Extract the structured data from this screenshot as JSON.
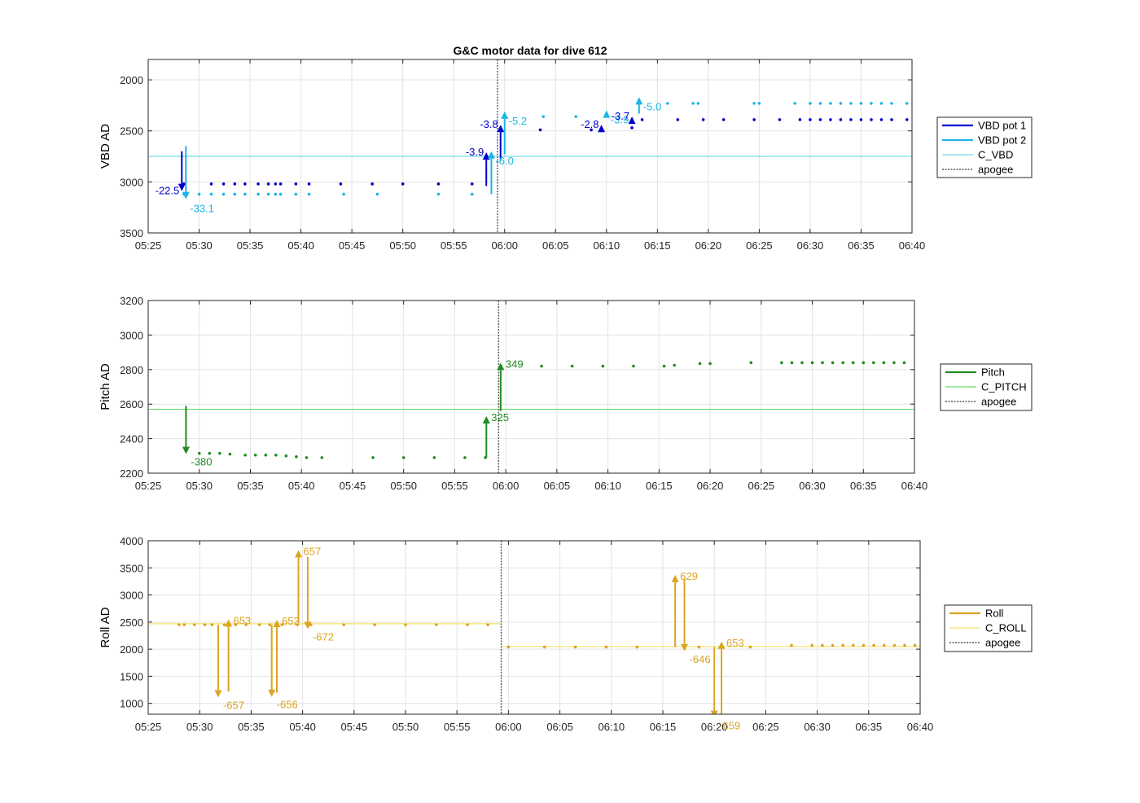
{
  "figure": {
    "title": "G&C motor data for dive 612"
  },
  "x_ticks": [
    "05:25",
    "05:30",
    "05:35",
    "05:40",
    "05:45",
    "05:50",
    "05:55",
    "06:00",
    "06:05",
    "06:10",
    "06:15",
    "06:20",
    "06:25",
    "06:30",
    "06:35",
    "06:40"
  ],
  "chart_data": [
    {
      "type": "scatter",
      "ylabel": "VBD AD",
      "ylim": [
        3500,
        1800
      ],
      "y_reversed": true,
      "y_ticks": [
        2000,
        2500,
        3000,
        3500
      ],
      "xlim": [
        "05:25",
        "06:40"
      ],
      "grid": true,
      "legend_position": "right",
      "legend": [
        "VBD pot 1",
        "VBD pot 2",
        "C_VBD",
        "apogee"
      ],
      "colors": {
        "pot1": "#0000cc",
        "pot2": "#1ab5e6",
        "ref": "#6fdde8",
        "apogee": "#555555"
      },
      "c_value": 2750,
      "apogee_time": 34.3,
      "series": [
        {
          "name": "VBD pot 1",
          "color": "#0000cc",
          "x": [
            3.5,
            6.2,
            7.4,
            8.5,
            9.5,
            10.8,
            11.8,
            12.5,
            13.0,
            14.5,
            15.8,
            18.9,
            22.0,
            25.0,
            28.5,
            31.8,
            38.5,
            43.5,
            47.5,
            48.5,
            52.0,
            54.5,
            56.5,
            59.5,
            62.0,
            64.0,
            65.0,
            66.0,
            67.0,
            68.0,
            69.0,
            70.0,
            71.0,
            72.0,
            73.0,
            74.5
          ],
          "y": [
            3020,
            3020,
            3020,
            3020,
            3020,
            3020,
            3020,
            3020,
            3020,
            3020,
            3020,
            3020,
            3020,
            3020,
            3020,
            3020,
            2490,
            2490,
            2470,
            2390,
            2390,
            2390,
            2390,
            2390,
            2390,
            2390,
            2390,
            2390,
            2390,
            2390,
            2390,
            2390,
            2390,
            2390,
            2390,
            2390
          ]
        },
        {
          "name": "VBD pot 2",
          "color": "#1ab5e6",
          "x": [
            3.5,
            5.0,
            6.2,
            7.4,
            8.5,
            9.5,
            10.8,
            11.8,
            12.5,
            13.0,
            14.5,
            15.8,
            19.2,
            22.5,
            28.5,
            31.8,
            38.8,
            42.0,
            51.0,
            53.5,
            54.0,
            59.5,
            60.0,
            63.5,
            65.0,
            66.0,
            67.0,
            68.0,
            69.0,
            70.0,
            71.0,
            72.0,
            73.0,
            74.5
          ],
          "y": [
            3120,
            3120,
            3120,
            3120,
            3120,
            3120,
            3120,
            3120,
            3120,
            3120,
            3120,
            3120,
            3120,
            3120,
            3120,
            3120,
            2360,
            2360,
            2230,
            2230,
            2230,
            2230,
            2230,
            2230,
            2230,
            2230,
            2230,
            2230,
            2230,
            2230,
            2230,
            2230,
            2230,
            2230
          ]
        }
      ],
      "arrows": [
        {
          "series": "VBD pot 1",
          "x": 3.3,
          "y0": 2700,
          "y1": 3090,
          "label": "-22.5",
          "color": "#0000cc"
        },
        {
          "series": "VBD pot 2",
          "x": 3.7,
          "y0": 2650,
          "y1": 3170,
          "label": "-33.1",
          "color": "#1ab5e6"
        },
        {
          "series": "VBD pot 1",
          "x": 33.2,
          "y0": 3040,
          "y1": 2710,
          "label": "-3.9",
          "color": "#0000cc"
        },
        {
          "series": "VBD pot 2",
          "x": 33.7,
          "y0": 3120,
          "y1": 2700,
          "label": "-6.0",
          "color": "#1ab5e6"
        },
        {
          "series": "VBD pot 1",
          "x": 34.6,
          "y0": 2780,
          "y1": 2440,
          "label": "-3.8",
          "color": "#0000cc"
        },
        {
          "series": "VBD pot 2",
          "x": 35.0,
          "y0": 2730,
          "y1": 2310,
          "label": "-5.2",
          "color": "#1ab5e6"
        },
        {
          "series": "VBD pot 1",
          "x": 44.5,
          "y0": 2490,
          "y1": 2440,
          "label": "-2.8",
          "color": "#0000cc"
        },
        {
          "series": "VBD pot 2",
          "x": 45.0,
          "y0": 2360,
          "y1": 2300,
          "label": "-3.9",
          "color": "#1ab5e6"
        },
        {
          "series": "VBD pot 1",
          "x": 47.5,
          "y0": 2420,
          "y1": 2360,
          "label": "-3.7",
          "color": "#0000cc"
        },
        {
          "series": "VBD pot 2",
          "x": 48.2,
          "y0": 2330,
          "y1": 2170,
          "label": "-5.0",
          "color": "#1ab5e6"
        }
      ]
    },
    {
      "type": "scatter",
      "ylabel": "Pitch AD",
      "ylim": [
        2200,
        3200
      ],
      "y_ticks": [
        2200,
        2400,
        2600,
        2800,
        3000,
        3200
      ],
      "xlim": [
        "05:25",
        "06:40"
      ],
      "grid": true,
      "legend_position": "right",
      "legend": [
        "Pitch",
        "C_PITCH",
        "apogee"
      ],
      "colors": {
        "pitch": "#228b22",
        "ref": "#66dd66",
        "apogee": "#555555"
      },
      "c_value": 2570,
      "apogee_time": 34.3,
      "series": [
        {
          "name": "Pitch",
          "color": "#228b22",
          "x": [
            5.0,
            6.0,
            7.0,
            8.0,
            9.5,
            10.5,
            11.5,
            12.5,
            13.5,
            14.5,
            15.5,
            17.0,
            22.0,
            25.0,
            28.0,
            31.0,
            33.0,
            38.5,
            41.5,
            44.5,
            47.5,
            50.5,
            51.5,
            54.0,
            55.0,
            59.0,
            62.0,
            63.0,
            64.0,
            65.0,
            66.0,
            67.0,
            68.0,
            69.0,
            70.0,
            71.0,
            72.0,
            73.0,
            74.0
          ],
          "y": [
            2315,
            2315,
            2315,
            2310,
            2305,
            2305,
            2305,
            2305,
            2300,
            2295,
            2290,
            2290,
            2290,
            2290,
            2290,
            2290,
            2290,
            2820,
            2820,
            2820,
            2820,
            2820,
            2825,
            2835,
            2835,
            2840,
            2840,
            2840,
            2840,
            2840,
            2840,
            2840,
            2840,
            2840,
            2840,
            2840,
            2840,
            2840,
            2840
          ]
        }
      ],
      "arrows": [
        {
          "x": 3.7,
          "y0": 2590,
          "y1": 2310,
          "label": "-380",
          "color": "#228b22"
        },
        {
          "x": 33.1,
          "y0": 2290,
          "y1": 2530,
          "label": "325",
          "color": "#228b22"
        },
        {
          "x": 34.5,
          "y0": 2560,
          "y1": 2840,
          "label": "349",
          "color": "#228b22"
        }
      ]
    },
    {
      "type": "scatter",
      "ylabel": "Roll AD",
      "ylim": [
        800,
        4000
      ],
      "y_ticks": [
        1000,
        1500,
        2000,
        2500,
        3000,
        3500,
        4000
      ],
      "xlim": [
        "05:25",
        "06:40"
      ],
      "grid": true,
      "legend_position": "right",
      "legend": [
        "Roll",
        "C_ROLL",
        "apogee"
      ],
      "colors": {
        "roll": "#daa520",
        "ref": "#f5e06a",
        "apogee": "#555555"
      },
      "c_segments": [
        {
          "x0": 0,
          "x1": 34.3,
          "y": 2470
        },
        {
          "x0": 34.3,
          "x1": 75,
          "y": 2050
        }
      ],
      "apogee_time": 34.3,
      "series": [
        {
          "name": "Roll",
          "color": "#daa520",
          "x": [
            3.0,
            3.5,
            4.5,
            5.5,
            6.2,
            7.4,
            8.5,
            9.5,
            10.8,
            11.8,
            12.5,
            13.0,
            14.5,
            15.8,
            19.0,
            22.0,
            25.0,
            28.0,
            31.0,
            33.0,
            35.0,
            38.5,
            41.5,
            44.5,
            47.5,
            53.5,
            58.5,
            62.5,
            64.5,
            65.5,
            66.5,
            67.5,
            68.5,
            69.5,
            70.5,
            71.5,
            72.5,
            73.5,
            74.5
          ],
          "y": [
            2450,
            2450,
            2450,
            2450,
            2450,
            2450,
            2450,
            2450,
            2450,
            2450,
            2450,
            2450,
            2450,
            2450,
            2450,
            2450,
            2450,
            2450,
            2450,
            2450,
            2040,
            2040,
            2040,
            2040,
            2040,
            2040,
            2040,
            2070,
            2070,
            2070,
            2070,
            2070,
            2070,
            2070,
            2070,
            2070,
            2070,
            2070,
            2070
          ]
        }
      ],
      "arrows": [
        {
          "x": 6.8,
          "y0": 2450,
          "y1": 1110,
          "label": "-657",
          "color": "#daa520"
        },
        {
          "x": 7.8,
          "y0": 1220,
          "y1": 2550,
          "label": "653",
          "color": "#daa520"
        },
        {
          "x": 12.0,
          "y0": 2450,
          "y1": 1120,
          "label": "-656",
          "color": "#daa520"
        },
        {
          "x": 12.5,
          "y0": 1200,
          "y1": 2540,
          "label": "652",
          "color": "#daa520"
        },
        {
          "x": 14.6,
          "y0": 2480,
          "y1": 3830,
          "label": "657",
          "color": "#daa520"
        },
        {
          "x": 15.5,
          "y0": 3700,
          "y1": 2370,
          "label": "-672",
          "color": "#daa520"
        },
        {
          "x": 51.2,
          "y0": 2040,
          "y1": 3370,
          "label": "629",
          "color": "#daa520"
        },
        {
          "x": 52.1,
          "y0": 3300,
          "y1": 1960,
          "label": "-646",
          "color": "#daa520"
        },
        {
          "x": 55.0,
          "y0": 2040,
          "y1": 730,
          "label": "-659",
          "color": "#daa520"
        },
        {
          "x": 55.7,
          "y0": 720,
          "y1": 2140,
          "label": "653",
          "color": "#daa520"
        }
      ]
    }
  ]
}
